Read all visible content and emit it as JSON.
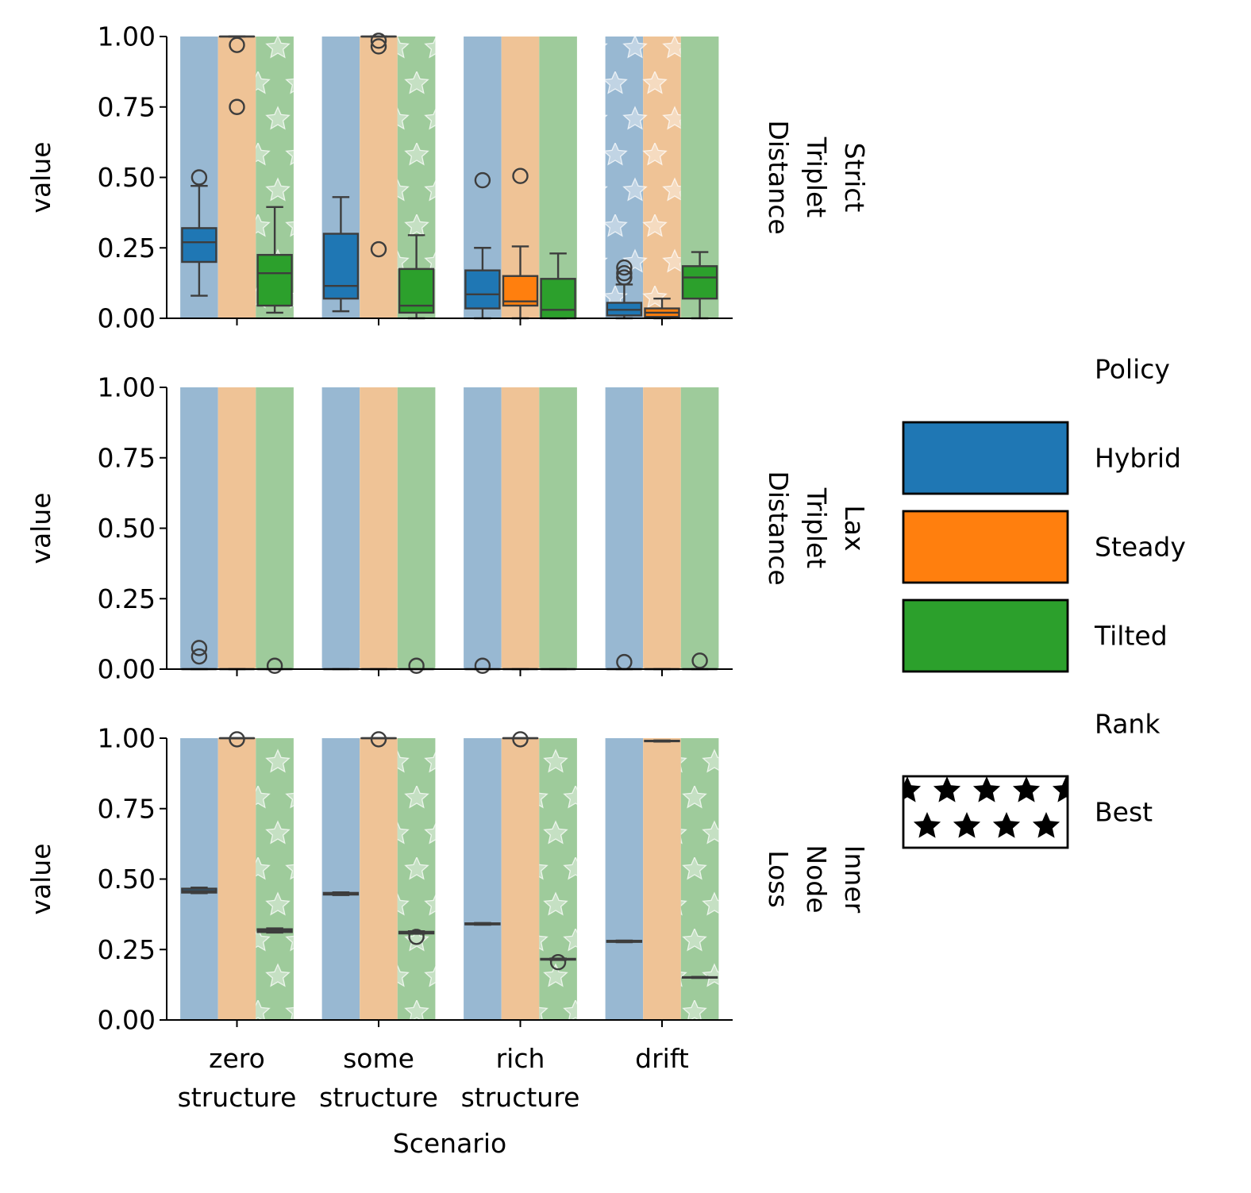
{
  "chart_data": {
    "type": "box",
    "xlabel": "Scenario",
    "ylabel": "value",
    "ylim": [
      0,
      1
    ],
    "yticks": [
      "0.00",
      "0.25",
      "0.50",
      "0.75",
      "1.00"
    ],
    "categories": [
      {
        "line1": "zero",
        "line2": "structure"
      },
      {
        "line1": "some",
        "line2": "structure"
      },
      {
        "line1": "rich",
        "line2": "structure"
      },
      {
        "line1": "drift",
        "line2": ""
      }
    ],
    "legend": {
      "position": "right",
      "policy_title": "Policy",
      "policy_entries": [
        {
          "name": "Hybrid",
          "color": "#1f77b4"
        },
        {
          "name": "Steady",
          "color": "#ff7f0e"
        },
        {
          "name": "Tilted",
          "color": "#2ca02c"
        }
      ],
      "rank_title": "Rank",
      "rank_entry": "Best"
    },
    "colors": {
      "Hybrid": {
        "solid": "#1f77b4",
        "bg": "#98b8d2"
      },
      "Steady": {
        "solid": "#ff7f0e",
        "bg": "#efc396"
      },
      "Tilted": {
        "solid": "#2ca02c",
        "bg": "#9ecb9b"
      },
      "box_line": "#3d3d3d"
    },
    "panels": [
      {
        "row_label": [
          "Strict",
          "Triplet",
          "Distance"
        ],
        "background_bars": [
          {
            "category": 0,
            "policy": "Hybrid",
            "value": 1.0,
            "best": false
          },
          {
            "category": 0,
            "policy": "Steady",
            "value": 1.0,
            "best": false
          },
          {
            "category": 0,
            "policy": "Tilted",
            "value": 1.0,
            "best": true
          },
          {
            "category": 1,
            "policy": "Hybrid",
            "value": 1.0,
            "best": false
          },
          {
            "category": 1,
            "policy": "Steady",
            "value": 1.0,
            "best": false
          },
          {
            "category": 1,
            "policy": "Tilted",
            "value": 1.0,
            "best": true
          },
          {
            "category": 2,
            "policy": "Hybrid",
            "value": 1.0,
            "best": false
          },
          {
            "category": 2,
            "policy": "Steady",
            "value": 1.0,
            "best": false
          },
          {
            "category": 2,
            "policy": "Tilted",
            "value": 1.0,
            "best": false
          },
          {
            "category": 3,
            "policy": "Hybrid",
            "value": 1.0,
            "best": true
          },
          {
            "category": 3,
            "policy": "Steady",
            "value": 1.0,
            "best": true
          },
          {
            "category": 3,
            "policy": "Tilted",
            "value": 1.0,
            "best": false
          }
        ],
        "boxes": [
          {
            "category": 0,
            "policy": "Hybrid",
            "whislo": 0.08,
            "q1": 0.2,
            "med": 0.27,
            "q3": 0.32,
            "whishi": 0.47,
            "fliers": [
              0.5
            ]
          },
          {
            "category": 0,
            "policy": "Steady",
            "whislo": 1.0,
            "q1": 1.0,
            "med": 1.0,
            "q3": 1.0,
            "whishi": 1.0,
            "fliers": [
              0.97,
              0.75
            ]
          },
          {
            "category": 0,
            "policy": "Tilted",
            "whislo": 0.02,
            "q1": 0.045,
            "med": 0.16,
            "q3": 0.225,
            "whishi": 0.395,
            "fliers": []
          },
          {
            "category": 1,
            "policy": "Hybrid",
            "whislo": 0.025,
            "q1": 0.07,
            "med": 0.115,
            "q3": 0.3,
            "whishi": 0.43,
            "fliers": []
          },
          {
            "category": 1,
            "policy": "Steady",
            "whislo": 1.0,
            "q1": 1.0,
            "med": 1.0,
            "q3": 1.0,
            "whishi": 1.0,
            "fliers": [
              0.985,
              0.965,
              0.245
            ]
          },
          {
            "category": 1,
            "policy": "Tilted",
            "whislo": 0.0,
            "q1": 0.02,
            "med": 0.045,
            "q3": 0.175,
            "whishi": 0.295,
            "fliers": []
          },
          {
            "category": 2,
            "policy": "Hybrid",
            "whislo": 0.0,
            "q1": 0.035,
            "med": 0.085,
            "q3": 0.17,
            "whishi": 0.25,
            "fliers": [
              0.49
            ]
          },
          {
            "category": 2,
            "policy": "Steady",
            "whislo": 0.0,
            "q1": 0.045,
            "med": 0.06,
            "q3": 0.15,
            "whishi": 0.255,
            "fliers": [
              0.505
            ]
          },
          {
            "category": 2,
            "policy": "Tilted",
            "whislo": 0.0,
            "q1": 0.0,
            "med": 0.03,
            "q3": 0.14,
            "whishi": 0.23,
            "fliers": []
          },
          {
            "category": 3,
            "policy": "Hybrid",
            "whislo": 0.0,
            "q1": 0.01,
            "med": 0.03,
            "q3": 0.055,
            "whishi": 0.12,
            "fliers": [
              0.18,
              0.16,
              0.145
            ]
          },
          {
            "category": 3,
            "policy": "Steady",
            "whislo": 0.0,
            "q1": 0.005,
            "med": 0.02,
            "q3": 0.035,
            "whishi": 0.07,
            "fliers": []
          },
          {
            "category": 3,
            "policy": "Tilted",
            "whislo": 0.0,
            "q1": 0.07,
            "med": 0.145,
            "q3": 0.185,
            "whishi": 0.235,
            "fliers": []
          }
        ]
      },
      {
        "row_label": [
          "Lax",
          "Triplet",
          "Distance"
        ],
        "background_bars": [
          {
            "category": 0,
            "policy": "Hybrid",
            "value": 1.0,
            "best": false
          },
          {
            "category": 0,
            "policy": "Steady",
            "value": 1.0,
            "best": false
          },
          {
            "category": 0,
            "policy": "Tilted",
            "value": 1.0,
            "best": false
          },
          {
            "category": 1,
            "policy": "Hybrid",
            "value": 1.0,
            "best": false
          },
          {
            "category": 1,
            "policy": "Steady",
            "value": 1.0,
            "best": false
          },
          {
            "category": 1,
            "policy": "Tilted",
            "value": 1.0,
            "best": false
          },
          {
            "category": 2,
            "policy": "Hybrid",
            "value": 1.0,
            "best": false
          },
          {
            "category": 2,
            "policy": "Steady",
            "value": 1.0,
            "best": false
          },
          {
            "category": 2,
            "policy": "Tilted",
            "value": 1.0,
            "best": false
          },
          {
            "category": 3,
            "policy": "Hybrid",
            "value": 1.0,
            "best": false
          },
          {
            "category": 3,
            "policy": "Steady",
            "value": 1.0,
            "best": false
          },
          {
            "category": 3,
            "policy": "Tilted",
            "value": 1.0,
            "best": false
          }
        ],
        "boxes": [
          {
            "category": 0,
            "policy": "Hybrid",
            "whislo": 0.0,
            "q1": 0.0,
            "med": 0.0,
            "q3": 0.0,
            "whishi": 0.0,
            "fliers": [
              0.075,
              0.045
            ]
          },
          {
            "category": 0,
            "policy": "Steady",
            "whislo": 0.0,
            "q1": 0.0,
            "med": 0.0,
            "q3": 0.0,
            "whishi": 0.0,
            "fliers": []
          },
          {
            "category": 0,
            "policy": "Tilted",
            "whislo": 0.0,
            "q1": 0.0,
            "med": 0.0,
            "q3": 0.0,
            "whishi": 0.0,
            "fliers": [
              0.012
            ]
          },
          {
            "category": 1,
            "policy": "Hybrid",
            "whislo": 0.0,
            "q1": 0.0,
            "med": 0.0,
            "q3": 0.0,
            "whishi": 0.0,
            "fliers": []
          },
          {
            "category": 1,
            "policy": "Steady",
            "whislo": 0.0,
            "q1": 0.0,
            "med": 0.0,
            "q3": 0.0,
            "whishi": 0.0,
            "fliers": []
          },
          {
            "category": 1,
            "policy": "Tilted",
            "whislo": 0.0,
            "q1": 0.0,
            "med": 0.0,
            "q3": 0.0,
            "whishi": 0.0,
            "fliers": [
              0.012
            ]
          },
          {
            "category": 2,
            "policy": "Hybrid",
            "whislo": 0.0,
            "q1": 0.0,
            "med": 0.0,
            "q3": 0.0,
            "whishi": 0.0,
            "fliers": [
              0.012
            ]
          },
          {
            "category": 2,
            "policy": "Steady",
            "whislo": 0.0,
            "q1": 0.0,
            "med": 0.0,
            "q3": 0.0,
            "whishi": 0.0,
            "fliers": []
          },
          {
            "category": 2,
            "policy": "Tilted",
            "whislo": 0.0,
            "q1": 0.0,
            "med": 0.0,
            "q3": 0.0,
            "whishi": 0.0,
            "fliers": []
          },
          {
            "category": 3,
            "policy": "Hybrid",
            "whislo": 0.0,
            "q1": 0.0,
            "med": 0.0,
            "q3": 0.0,
            "whishi": 0.0,
            "fliers": [
              0.025
            ]
          },
          {
            "category": 3,
            "policy": "Steady",
            "whislo": 0.0,
            "q1": 0.0,
            "med": 0.0,
            "q3": 0.0,
            "whishi": 0.0,
            "fliers": []
          },
          {
            "category": 3,
            "policy": "Tilted",
            "whislo": 0.0,
            "q1": 0.0,
            "med": 0.0,
            "q3": 0.0,
            "whishi": 0.0,
            "fliers": [
              0.03
            ]
          }
        ]
      },
      {
        "row_label": [
          "Inner",
          "Node",
          "Loss"
        ],
        "background_bars": [
          {
            "category": 0,
            "policy": "Hybrid",
            "value": 1.0,
            "best": false
          },
          {
            "category": 0,
            "policy": "Steady",
            "value": 1.0,
            "best": false
          },
          {
            "category": 0,
            "policy": "Tilted",
            "value": 1.0,
            "best": true
          },
          {
            "category": 1,
            "policy": "Hybrid",
            "value": 1.0,
            "best": false
          },
          {
            "category": 1,
            "policy": "Steady",
            "value": 1.0,
            "best": false
          },
          {
            "category": 1,
            "policy": "Tilted",
            "value": 1.0,
            "best": true
          },
          {
            "category": 2,
            "policy": "Hybrid",
            "value": 1.0,
            "best": false
          },
          {
            "category": 2,
            "policy": "Steady",
            "value": 1.0,
            "best": false
          },
          {
            "category": 2,
            "policy": "Tilted",
            "value": 1.0,
            "best": true
          },
          {
            "category": 3,
            "policy": "Hybrid",
            "value": 1.0,
            "best": false
          },
          {
            "category": 3,
            "policy": "Steady",
            "value": 1.0,
            "best": false
          },
          {
            "category": 3,
            "policy": "Tilted",
            "value": 1.0,
            "best": true
          }
        ],
        "boxes": [
          {
            "category": 0,
            "policy": "Hybrid",
            "whislo": 0.45,
            "q1": 0.452,
            "med": 0.458,
            "q3": 0.466,
            "whishi": 0.47,
            "fliers": []
          },
          {
            "category": 0,
            "policy": "Steady",
            "whislo": 1.0,
            "q1": 1.0,
            "med": 1.0,
            "q3": 1.0,
            "whishi": 1.0,
            "fliers": [
              0.996
            ]
          },
          {
            "category": 0,
            "policy": "Tilted",
            "whislo": 0.31,
            "q1": 0.312,
            "med": 0.317,
            "q3": 0.322,
            "whishi": 0.325,
            "fliers": []
          },
          {
            "category": 1,
            "policy": "Hybrid",
            "whislo": 0.443,
            "q1": 0.445,
            "med": 0.448,
            "q3": 0.451,
            "whishi": 0.453,
            "fliers": []
          },
          {
            "category": 1,
            "policy": "Steady",
            "whislo": 1.0,
            "q1": 1.0,
            "med": 1.0,
            "q3": 1.0,
            "whishi": 1.0,
            "fliers": [
              0.996
            ]
          },
          {
            "category": 1,
            "policy": "Tilted",
            "whislo": 0.306,
            "q1": 0.307,
            "med": 0.31,
            "q3": 0.313,
            "whishi": 0.315,
            "fliers": [
              0.295
            ]
          },
          {
            "category": 2,
            "policy": "Hybrid",
            "whislo": 0.338,
            "q1": 0.339,
            "med": 0.341,
            "q3": 0.343,
            "whishi": 0.344,
            "fliers": []
          },
          {
            "category": 2,
            "policy": "Steady",
            "whislo": 1.0,
            "q1": 1.0,
            "med": 1.0,
            "q3": 1.0,
            "whishi": 1.0,
            "fliers": [
              0.996
            ]
          },
          {
            "category": 2,
            "policy": "Tilted",
            "whislo": 0.213,
            "q1": 0.214,
            "med": 0.215,
            "q3": 0.217,
            "whishi": 0.218,
            "fliers": [
              0.205
            ]
          },
          {
            "category": 3,
            "policy": "Hybrid",
            "whislo": 0.276,
            "q1": 0.277,
            "med": 0.279,
            "q3": 0.281,
            "whishi": 0.282,
            "fliers": []
          },
          {
            "category": 3,
            "policy": "Steady",
            "whislo": 0.988,
            "q1": 0.989,
            "med": 0.99,
            "q3": 0.991,
            "whishi": 0.992,
            "fliers": []
          },
          {
            "category": 3,
            "policy": "Tilted",
            "whislo": 0.149,
            "q1": 0.15,
            "med": 0.151,
            "q3": 0.152,
            "whishi": 0.153,
            "fliers": []
          }
        ]
      }
    ]
  }
}
